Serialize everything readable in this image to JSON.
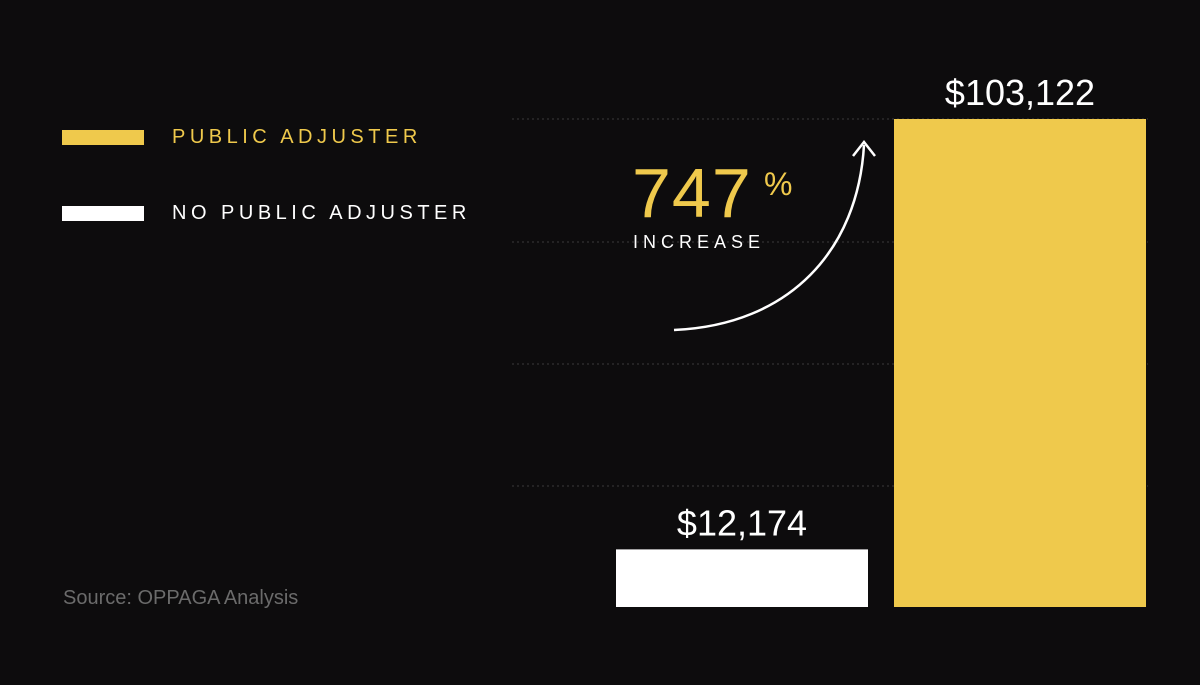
{
  "colors": {
    "background": "#0d0c0d",
    "public_adjuster": "#efc94c",
    "no_public_adjuster": "#ffffff",
    "gridline": "#3a3a3a",
    "source_text": "#6b6b6b"
  },
  "legend": [
    {
      "label": "PUBLIC ADJUSTER",
      "color": "#efc94c"
    },
    {
      "label": "NO PUBLIC ADJUSTER",
      "color": "#ffffff"
    }
  ],
  "annotation": {
    "value": "747",
    "unit": "%",
    "label": "INCREASE"
  },
  "source": "Source: OPPAGA Analysis",
  "chart_data": {
    "type": "bar",
    "categories": [
      "No Public Adjuster",
      "Public Adjuster"
    ],
    "values": [
      12174,
      103122
    ],
    "value_labels": [
      "$12,174",
      "$103,122"
    ],
    "bar_colors": [
      "#ffffff",
      "#efc94c"
    ],
    "ylim": [
      0,
      105000
    ],
    "grid": true,
    "legend_position": "top-left"
  }
}
